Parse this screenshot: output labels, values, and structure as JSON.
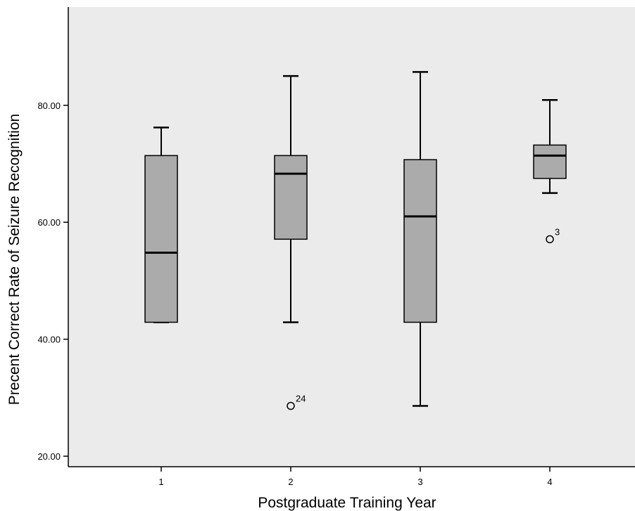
{
  "chart_data": {
    "type": "boxplot",
    "xlabel": "Postgraduate Training Year",
    "ylabel": "Precent Correct Rate of Seizure Recognition",
    "categories": [
      "1",
      "2",
      "3",
      "4"
    ],
    "y_ticks": [
      "20.00",
      "40.00",
      "60.00",
      "80.00"
    ],
    "ylim": [
      18.2,
      96.8
    ],
    "grid": false,
    "colors": {
      "plot_background": "#ebebeb",
      "box_fill": "#ababab",
      "stroke": "#000000"
    },
    "boxes": [
      {
        "category": "1",
        "whisker_low": 42.9,
        "q1": 42.9,
        "median": 54.8,
        "q3": 71.4,
        "whisker_high": 76.2
      },
      {
        "category": "2",
        "whisker_low": 42.9,
        "q1": 57.1,
        "median": 68.3,
        "q3": 71.4,
        "whisker_high": 85.0
      },
      {
        "category": "3",
        "whisker_low": 28.6,
        "q1": 42.9,
        "median": 61.0,
        "q3": 70.7,
        "whisker_high": 85.7
      },
      {
        "category": "4",
        "whisker_low": 65.0,
        "q1": 67.5,
        "median": 71.4,
        "q3": 73.2,
        "whisker_high": 80.9
      }
    ],
    "outliers": [
      {
        "category": "2",
        "value": 28.6,
        "label": "24"
      },
      {
        "category": "4",
        "value": 57.1,
        "label": "3"
      }
    ]
  }
}
